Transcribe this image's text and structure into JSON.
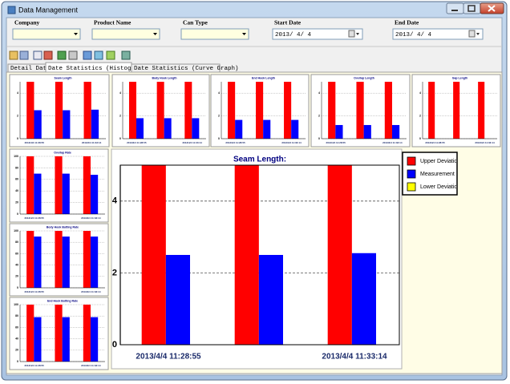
{
  "window": {
    "title": "Data Management"
  },
  "filters": [
    {
      "label": "Company",
      "value": ""
    },
    {
      "label": "Product Name",
      "value": ""
    },
    {
      "label": "Can Type",
      "value": ""
    },
    {
      "label": "Start Date",
      "value": "2013/ 4/ 4"
    },
    {
      "label": "End Date",
      "value": "2013/ 4/ 4"
    }
  ],
  "tabs": [
    "Detail Data",
    "Date Statistics (Histogram)",
    "Date Statistics (Curve Graph)"
  ],
  "chart_data": [
    {
      "type": "bar",
      "title": "Seam Length:",
      "categories": [
        "2013/4/4 11:28:55",
        null,
        "2013/4/4 11:33:14"
      ],
      "series": [
        {
          "name": "Upper Deviation",
          "color": "#ff0000",
          "values": [
            5,
            5,
            5
          ]
        },
        {
          "name": "Measurement",
          "color": "#0000ff",
          "values": [
            2.5,
            2.5,
            2.55
          ]
        },
        {
          "name": "Lower Deviation",
          "color": "#ffff00",
          "values": [
            0,
            0,
            0
          ]
        }
      ],
      "ylim": [
        0,
        5
      ],
      "yticks": [
        0,
        2,
        4
      ],
      "grid": true,
      "legend": "right"
    },
    {
      "type": "bar",
      "title": "Seam Length",
      "categories": [
        "2013/4/4 11:28:55",
        null,
        "2013/4/4 11:33:14"
      ],
      "series": [
        {
          "color": "#ff0000",
          "values": [
            5,
            5,
            5
          ]
        },
        {
          "color": "#0000ff",
          "values": [
            2.5,
            2.5,
            2.55
          ]
        }
      ],
      "ylim": [
        0,
        5
      ],
      "yticks": [
        0,
        2,
        4
      ],
      "grid": true
    },
    {
      "type": "bar",
      "title": "Body Hook Length",
      "categories": [
        "2013/4/4 11:28:55",
        null,
        "2013/4/4 11:33:14"
      ],
      "series": [
        {
          "color": "#ff0000",
          "values": [
            5,
            5,
            5
          ]
        },
        {
          "color": "#0000ff",
          "values": [
            1.8,
            1.8,
            1.8
          ]
        }
      ],
      "ylim": [
        0,
        5
      ],
      "yticks": [
        0,
        2,
        4
      ],
      "grid": true
    },
    {
      "type": "bar",
      "title": "End Hook Length",
      "categories": [
        "2013/4/4 11:28:55",
        null,
        "2013/4/4 11:33:14"
      ],
      "series": [
        {
          "color": "#ff0000",
          "values": [
            5,
            5,
            5
          ]
        },
        {
          "color": "#0000ff",
          "values": [
            1.65,
            1.65,
            1.65
          ]
        }
      ],
      "ylim": [
        0,
        5
      ],
      "yticks": [
        0,
        2,
        4
      ],
      "grid": true
    },
    {
      "type": "bar",
      "title": "Overlap Length",
      "categories": [
        "2013/4/4 11:28:55",
        null,
        "2013/4/4 11:33:14"
      ],
      "series": [
        {
          "color": "#ff0000",
          "values": [
            5,
            5,
            5
          ]
        },
        {
          "color": "#0000ff",
          "values": [
            1.2,
            1.2,
            1.2
          ]
        }
      ],
      "ylim": [
        0,
        5
      ],
      "yticks": [
        0,
        2,
        4
      ],
      "grid": true
    },
    {
      "type": "bar",
      "title": "Gap Length",
      "categories": [
        "2013/4/4 11:28:55",
        null,
        "2013/4/4 11:33:14"
      ],
      "series": [
        {
          "color": "#ff0000",
          "values": [
            5,
            5,
            5
          ]
        }
      ],
      "ylim": [
        0,
        5
      ],
      "yticks": [
        0,
        2,
        4
      ],
      "grid": true
    },
    {
      "type": "bar",
      "title": "Overlap Rate",
      "categories": [
        "2013/4/4 11:28:55",
        null,
        "2013/4/4 11:33:14"
      ],
      "series": [
        {
          "color": "#ff0000",
          "values": [
            100,
            100,
            100
          ]
        },
        {
          "color": "#0000ff",
          "values": [
            70,
            70,
            68
          ]
        }
      ],
      "ylim": [
        0,
        100
      ],
      "yticks": [
        0,
        20,
        40,
        60,
        80,
        100
      ],
      "grid": true
    },
    {
      "type": "bar",
      "title": "Body Hook Butting Rate",
      "categories": [
        "2013/4/4 11:28:55",
        null,
        "2013/4/4 11:33:14"
      ],
      "series": [
        {
          "color": "#ff0000",
          "values": [
            100,
            100,
            100
          ]
        },
        {
          "color": "#0000ff",
          "values": [
            90,
            90,
            90
          ]
        }
      ],
      "ylim": [
        0,
        100
      ],
      "yticks": [
        0,
        20,
        40,
        60,
        80,
        100
      ],
      "grid": true
    },
    {
      "type": "bar",
      "title": "End Hook Butting Rate",
      "categories": [
        "2013/4/4 11:28:55",
        null,
        "2013/4/4 11:33:14"
      ],
      "series": [
        {
          "color": "#ff0000",
          "values": [
            100,
            100,
            100
          ]
        },
        {
          "color": "#0000ff",
          "values": [
            78,
            78,
            78
          ]
        }
      ],
      "ylim": [
        0,
        100
      ],
      "yticks": [
        0,
        20,
        40,
        60,
        80,
        100
      ],
      "grid": true
    }
  ]
}
